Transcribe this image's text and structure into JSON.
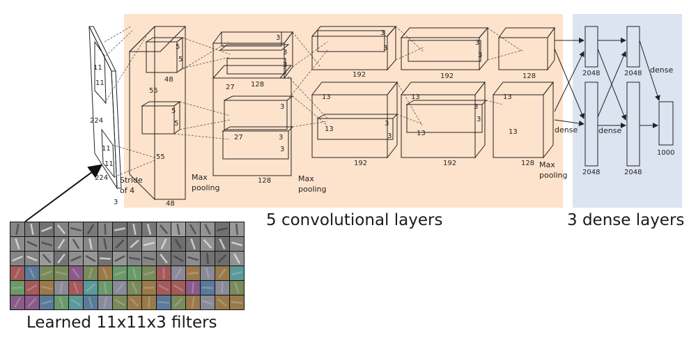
{
  "captions": {
    "conv": "5 convolutional layers",
    "dense": "3 dense layers",
    "filters": "Learned 11x11x3 filters"
  },
  "colors": {
    "conv_region": "#fde3cc",
    "dense_region": "#dce3f1"
  },
  "input": {
    "size": "224",
    "size_bottom": "224",
    "depth": "3",
    "kernel_a": "11",
    "kernel_b": "11",
    "kernel_c": "11",
    "kernel_d": "11",
    "stride": "Stride",
    "stride_of": "of 4"
  },
  "conv1": {
    "spatial": "55",
    "spatial_b": "55",
    "k1": "5",
    "k2": "5",
    "k3": "5",
    "k4": "5",
    "depth_top": "48",
    "depth_bottom": "48",
    "pool_line1": "Max",
    "pool_line2": "pooling"
  },
  "conv2": {
    "spatial": "27",
    "spatial_b": "27",
    "k1": "3",
    "k2": "3",
    "k3": "3",
    "k4": "3",
    "k5": "3",
    "k6": "3",
    "depth_top": "128",
    "depth_bottom": "128",
    "pool_line1": "Max",
    "pool_line2": "pooling"
  },
  "conv3": {
    "spatial": "13",
    "spatial_b": "13",
    "k1": "3",
    "k2": "3",
    "k3": "3",
    "k4": "3",
    "depth_top": "192",
    "depth_bottom": "192"
  },
  "conv4": {
    "spatial": "13",
    "spatial_b": "13",
    "k1": "3",
    "k2": "3",
    "k3": "3",
    "k4": "3",
    "depth_top": "192",
    "depth_bottom": "192"
  },
  "conv5": {
    "spatial": "13",
    "spatial_b": "13",
    "depth_top": "128",
    "depth_bottom": "128",
    "pool_line1": "Max",
    "pool_line2": "pooling"
  },
  "dense": {
    "d1_top": "2048",
    "d1_bottom": "2048",
    "d2_top": "2048",
    "d2_bottom": "2048",
    "out": "1000",
    "label_a": "dense",
    "label_b": "dense",
    "label_c": "dense"
  }
}
